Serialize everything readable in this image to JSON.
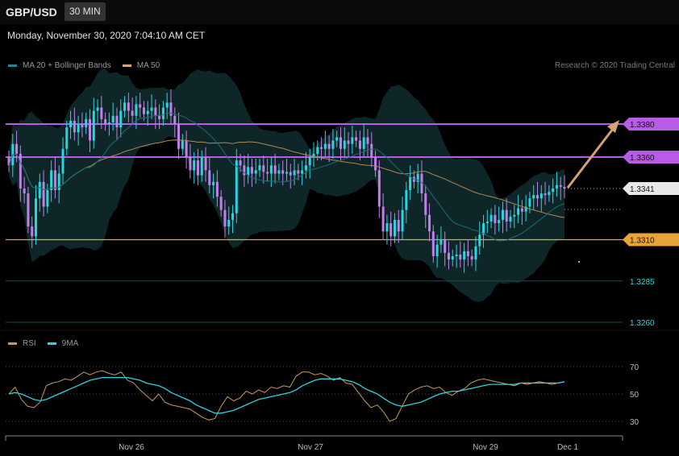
{
  "header": {
    "symbol": "GBP/USD",
    "timeframe": "30 MIN"
  },
  "timestamp": "Monday, November 30, 2020 7:04:10 AM CET",
  "legend_main": [
    {
      "label": "MA 20 + Bollinger Bands",
      "color": "#1a8a8a"
    },
    {
      "label": "MA 50",
      "color": "#d4a373"
    }
  ],
  "credit": "Research © 2020 Trading Central",
  "legend_rsi": [
    {
      "label": "RSI",
      "color": "#c49a5a"
    },
    {
      "label": "9MA",
      "color": "#2ad4e0"
    }
  ],
  "colors": {
    "resistance": "#b85ce8",
    "support": "#e8a33a",
    "bullish": "#2ad4e0",
    "bearish": "#c080e8",
    "target_arrow": "#d4a373"
  },
  "chart_data": [
    {
      "type": "candlestick",
      "title": "GBP/USD",
      "ylim": [
        1.325,
        1.3395
      ],
      "xticks": [
        "Nov 26",
        "Nov 27",
        "Nov 29",
        "Dec 1"
      ],
      "levels": [
        {
          "label": "1.3380",
          "value": 1.338,
          "kind": "resistance"
        },
        {
          "label": "1.3360",
          "value": 1.336,
          "kind": "resistance"
        },
        {
          "label": "1.3341",
          "value": 1.3341,
          "kind": "last"
        },
        {
          "label": "1.3310",
          "value": 1.331,
          "kind": "support"
        },
        {
          "label": "1.3285",
          "value": 1.3285,
          "kind": "support_minor"
        },
        {
          "label": "1.3260",
          "value": 1.326,
          "kind": "support_minor"
        }
      ],
      "series": [
        {
          "name": "MA 20 + Bollinger Bands"
        },
        {
          "name": "MA 50"
        }
      ],
      "close": [
        1.3355,
        1.3368,
        1.3362,
        1.3341,
        1.3338,
        1.3318,
        1.3312,
        1.3335,
        1.3345,
        1.333,
        1.334,
        1.3352,
        1.334,
        1.335,
        1.3365,
        1.3378,
        1.3382,
        1.3375,
        1.338,
        1.3378,
        1.3383,
        1.337,
        1.3388,
        1.339,
        1.3383,
        1.338,
        1.3381,
        1.3385,
        1.3378,
        1.3388,
        1.3393,
        1.3388,
        1.3385,
        1.3392,
        1.339,
        1.3386,
        1.3388,
        1.339,
        1.3385,
        1.3383,
        1.339,
        1.3393,
        1.3385,
        1.338,
        1.3365,
        1.337,
        1.336,
        1.3352,
        1.3358,
        1.3349,
        1.336,
        1.3352,
        1.3343,
        1.3345,
        1.3336,
        1.3328,
        1.3318,
        1.3322,
        1.3326,
        1.3358,
        1.3355,
        1.3349,
        1.3354,
        1.335,
        1.3352,
        1.3355,
        1.3351,
        1.335,
        1.3355,
        1.335,
        1.3352,
        1.335,
        1.3351,
        1.3349,
        1.3352,
        1.335,
        1.3352,
        1.3355,
        1.336,
        1.3362,
        1.3366,
        1.3365,
        1.3368,
        1.3365,
        1.337,
        1.3372,
        1.3365,
        1.337,
        1.3368,
        1.3372,
        1.337,
        1.3365,
        1.3372,
        1.3368,
        1.336,
        1.3352,
        1.333,
        1.3315,
        1.332,
        1.3312,
        1.3322,
        1.3315,
        1.3328,
        1.334,
        1.3348,
        1.3345,
        1.335,
        1.3338,
        1.3325,
        1.3315,
        1.33,
        1.3307,
        1.331,
        1.3302,
        1.3298,
        1.33,
        1.3301,
        1.3298,
        1.3303,
        1.33,
        1.3298,
        1.3306,
        1.3313,
        1.332,
        1.3321,
        1.3325,
        1.332,
        1.3322,
        1.3328,
        1.3321,
        1.3324,
        1.3325,
        1.3329,
        1.3327,
        1.333,
        1.3335,
        1.3337,
        1.3335,
        1.3338,
        1.3337,
        1.3339,
        1.3341,
        1.3343,
        1.3342,
        1.3341
      ]
    },
    {
      "type": "line",
      "title": "RSI",
      "ylim": [
        25,
        75
      ],
      "yticks": [
        "70",
        "50",
        "30"
      ],
      "series": [
        {
          "name": "RSI",
          "values": [
            50,
            55,
            46,
            41,
            40,
            44,
            56,
            58,
            59,
            61,
            60,
            63,
            66,
            64,
            66,
            67,
            65,
            64,
            66,
            60,
            58,
            53,
            49,
            45,
            50,
            44,
            42,
            41,
            40,
            39,
            36,
            33,
            31,
            32,
            41,
            48,
            45,
            47,
            52,
            50,
            53,
            51,
            55,
            54,
            56,
            55,
            63,
            66,
            66,
            64,
            65,
            63,
            60,
            62,
            58,
            57,
            51,
            45,
            40,
            42,
            37,
            30,
            32,
            41,
            50,
            53,
            55,
            56,
            54,
            55,
            51,
            49,
            52,
            54,
            58,
            60,
            61,
            60,
            59,
            58,
            57,
            56,
            58,
            57,
            58,
            59,
            58,
            57,
            58,
            59
          ]
        },
        {
          "name": "9MA",
          "values": [
            50,
            51,
            50,
            48,
            46,
            45,
            46,
            48,
            50,
            52,
            54,
            56,
            58,
            60,
            61,
            62,
            62,
            62,
            62,
            62,
            61,
            60,
            58,
            57,
            56,
            54,
            51,
            49,
            47,
            45,
            42,
            40,
            38,
            36,
            36,
            37,
            38,
            40,
            42,
            44,
            46,
            47,
            48,
            49,
            50,
            51,
            53,
            56,
            58,
            60,
            61,
            61,
            61,
            61,
            60,
            59,
            57,
            54,
            52,
            50,
            47,
            44,
            42,
            41,
            42,
            43,
            44,
            46,
            48,
            50,
            51,
            52,
            52,
            53,
            54,
            55,
            56,
            57,
            57,
            57,
            57,
            57,
            58,
            58,
            58,
            58,
            58,
            58,
            58,
            59
          ]
        }
      ]
    }
  ]
}
